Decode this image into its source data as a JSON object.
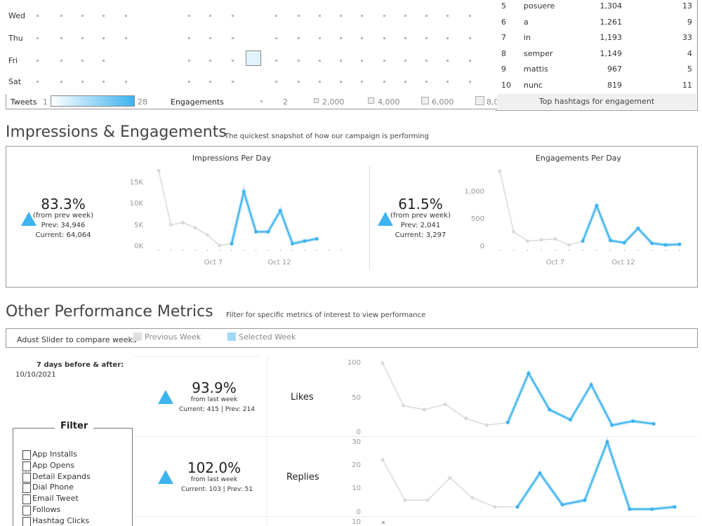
{
  "heatmap": {
    "days": [
      "Wed",
      "Thu",
      "Fri",
      "Sat"
    ],
    "legend_tweets_label": "Tweets",
    "legend_tweets_min": "1",
    "legend_tweets_max": "28",
    "legend_engagements_label": "Engagements",
    "legend_engagement_values": [
      "2",
      "2,000",
      "4,000",
      "6,000",
      "8,0"
    ]
  },
  "hashtags": {
    "rows": [
      {
        "rank": "5",
        "tag": "posuere",
        "engagements": "1,304",
        "count": "13"
      },
      {
        "rank": "6",
        "tag": "a",
        "engagements": "1,261",
        "count": "9"
      },
      {
        "rank": "7",
        "tag": "in",
        "engagements": "1,193",
        "count": "33"
      },
      {
        "rank": "8",
        "tag": "semper",
        "engagements": "1,149",
        "count": "4"
      },
      {
        "rank": "9",
        "tag": "mattis",
        "engagements": "967",
        "count": "5"
      },
      {
        "rank": "10",
        "tag": "nunc",
        "engagements": "819",
        "count": "11"
      }
    ],
    "footer": "Top hashtags for engagement"
  },
  "impressions_section": {
    "title": "Impressions & Engagements",
    "subtitle": "The quickest snapshot of how our campaign is performing",
    "impressions": {
      "title": "Impressions Per Day",
      "pct": "83.3%",
      "from": "(from prev week)",
      "prev": "Prev: 34,946",
      "current": "Current:  64,064",
      "y_ticks": [
        "15K",
        "10K",
        "5K",
        "0K"
      ],
      "x_ticks": [
        "Oct 7",
        "Oct 12"
      ]
    },
    "engagements": {
      "title": "Engagements Per Day",
      "pct": "61.5%",
      "from": "(from prev week)",
      "prev": "Prev: 2,041",
      "current": "Current:  3,297",
      "y_ticks": [
        "1,000",
        "500",
        "0"
      ],
      "x_ticks": [
        "Oct 7",
        "Oct 12"
      ]
    }
  },
  "other_section": {
    "title": "Other Performance Metrics",
    "subtitle": "Filter for specific metrics of interest to view performance",
    "slider_label": "Adust Slider to compare weeks",
    "legend_prev": "Previous Week",
    "legend_selected": "Selected Week",
    "date_caption": "7 days before & after:",
    "date_value": "10/10/2021",
    "filter_title": "Filter",
    "filter_items": [
      "App Installs",
      "App Opens",
      "Detail Expands",
      "Dial Phone",
      "Email Tweet",
      "Follows",
      "Hashtag Clicks"
    ],
    "likes": {
      "name": "Likes",
      "pct": "93.9%",
      "from": "from last week",
      "detail": "Current:  415   | Prev: 214",
      "y_ticks": [
        "100",
        "50",
        "0"
      ]
    },
    "replies": {
      "name": "Replies",
      "pct": "102.0%",
      "from": "from last week",
      "detail": "Current:  103   | Prev: 51",
      "y_ticks": [
        "30",
        "20",
        "10",
        "0"
      ]
    },
    "third_y_tick": "10"
  },
  "colors": {
    "accent": "#3db3f0",
    "prev_line": "#d9d9d9",
    "legend_prev": "#e0e0e0",
    "legend_selected": "#9fd8f7"
  },
  "chart_data": [
    {
      "type": "line",
      "title": "Impressions Per Day",
      "x_ticks": [
        "Oct 7",
        "Oct 12"
      ],
      "ylim": [
        0,
        17500
      ],
      "series": [
        {
          "values": [
            17000,
            4700,
            5200,
            4000,
            2400,
            0,
            400,
            null,
            null,
            null,
            null,
            null,
            null,
            null,
            null,
            null
          ]
        },
        {
          "values": [
            null,
            null,
            null,
            null,
            null,
            null,
            400,
            12200,
            3100,
            3100,
            7900,
            400,
            1000,
            1500,
            null,
            null
          ]
        }
      ]
    },
    {
      "type": "line",
      "title": "Engagements Per Day",
      "x_ticks": [
        "Oct 7",
        "Oct 12"
      ],
      "ylim": [
        0,
        1400
      ],
      "series": [
        {
          "values": [
            1350,
            250,
            80,
            100,
            120,
            10,
            80,
            null,
            null,
            null,
            null,
            null,
            null,
            null
          ]
        },
        {
          "values": [
            null,
            null,
            null,
            null,
            null,
            null,
            80,
            720,
            90,
            50,
            310,
            40,
            10,
            20
          ]
        }
      ]
    },
    {
      "type": "line",
      "title": "Likes",
      "ylim": [
        0,
        100
      ],
      "series": [
        {
          "values": [
            98,
            35,
            29,
            37,
            16,
            6,
            10,
            null,
            null,
            null,
            null,
            null,
            null,
            null,
            null
          ]
        },
        {
          "values": [
            null,
            null,
            null,
            null,
            null,
            null,
            10,
            83,
            29,
            14,
            66,
            6,
            12,
            8
          ]
        }
      ]
    },
    {
      "type": "line",
      "title": "Replies",
      "ylim": [
        0,
        30
      ],
      "series": [
        {
          "values": [
            22,
            4,
            4,
            14,
            5,
            1,
            1,
            null,
            null,
            null,
            null,
            null,
            null,
            null
          ]
        },
        {
          "values": [
            null,
            null,
            null,
            null,
            null,
            null,
            1,
            16,
            2,
            4,
            30,
            0,
            0,
            1
          ]
        }
      ]
    }
  ]
}
